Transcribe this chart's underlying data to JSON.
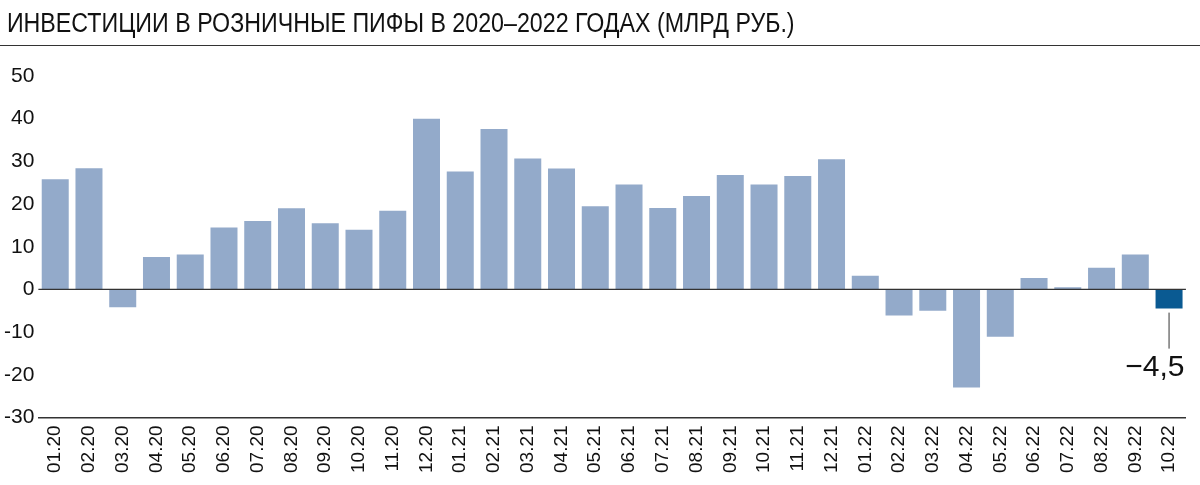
{
  "chart_data": {
    "type": "bar",
    "title": "ИНВЕСТИЦИИ В РОЗНИЧНЫЕ ПИФЫ В 2020–2022 ГОДАХ (МЛРД РУБ.)",
    "categories": [
      "01.20",
      "02.20",
      "03.20",
      "04.20",
      "05.20",
      "06.20",
      "07.20",
      "08.20",
      "09.20",
      "10.20",
      "11.20",
      "12.20",
      "01.21",
      "02.21",
      "03.21",
      "04.21",
      "05.21",
      "06.21",
      "07.21",
      "08.21",
      "09.21",
      "10.21",
      "11.21",
      "12.21",
      "01.22",
      "02.22",
      "03.22",
      "04.22",
      "05.22",
      "06.22",
      "07.22",
      "08.22",
      "09.22",
      "10.22"
    ],
    "values": [
      25.8,
      28.4,
      -4.2,
      7.6,
      8.2,
      14.5,
      16,
      19,
      15.5,
      14,
      18.4,
      40,
      27.6,
      37.6,
      30.7,
      28.3,
      19.5,
      24.6,
      19.1,
      21.9,
      26.8,
      24.6,
      26.6,
      30.5,
      3.2,
      -6.1,
      -5,
      -23,
      -11.1,
      2.7,
      0.5,
      5.1,
      8.2,
      -4.5
    ],
    "colors": [
      "#93aaca",
      "#93aaca",
      "#93aaca",
      "#93aaca",
      "#93aaca",
      "#93aaca",
      "#93aaca",
      "#93aaca",
      "#93aaca",
      "#93aaca",
      "#93aaca",
      "#93aaca",
      "#93aaca",
      "#93aaca",
      "#93aaca",
      "#93aaca",
      "#93aaca",
      "#93aaca",
      "#93aaca",
      "#93aaca",
      "#93aaca",
      "#93aaca",
      "#93aaca",
      "#93aaca",
      "#93aaca",
      "#93aaca",
      "#93aaca",
      "#93aaca",
      "#93aaca",
      "#93aaca",
      "#93aaca",
      "#93aaca",
      "#93aaca",
      "#0a5a92"
    ],
    "value_labels": [
      null,
      null,
      null,
      null,
      null,
      null,
      null,
      null,
      null,
      null,
      null,
      null,
      null,
      null,
      null,
      null,
      null,
      null,
      null,
      null,
      null,
      null,
      null,
      null,
      null,
      null,
      null,
      null,
      null,
      null,
      null,
      null,
      null,
      "−4,5"
    ],
    "ref_lines": [
      {
        "axis": "y",
        "value": 0,
        "color": "#333333"
      }
    ],
    "ylim": [
      -30,
      50
    ],
    "yticks": [
      -30,
      -20,
      -10,
      0,
      10,
      20,
      30,
      40,
      50
    ],
    "grid": false,
    "legend": false
  }
}
